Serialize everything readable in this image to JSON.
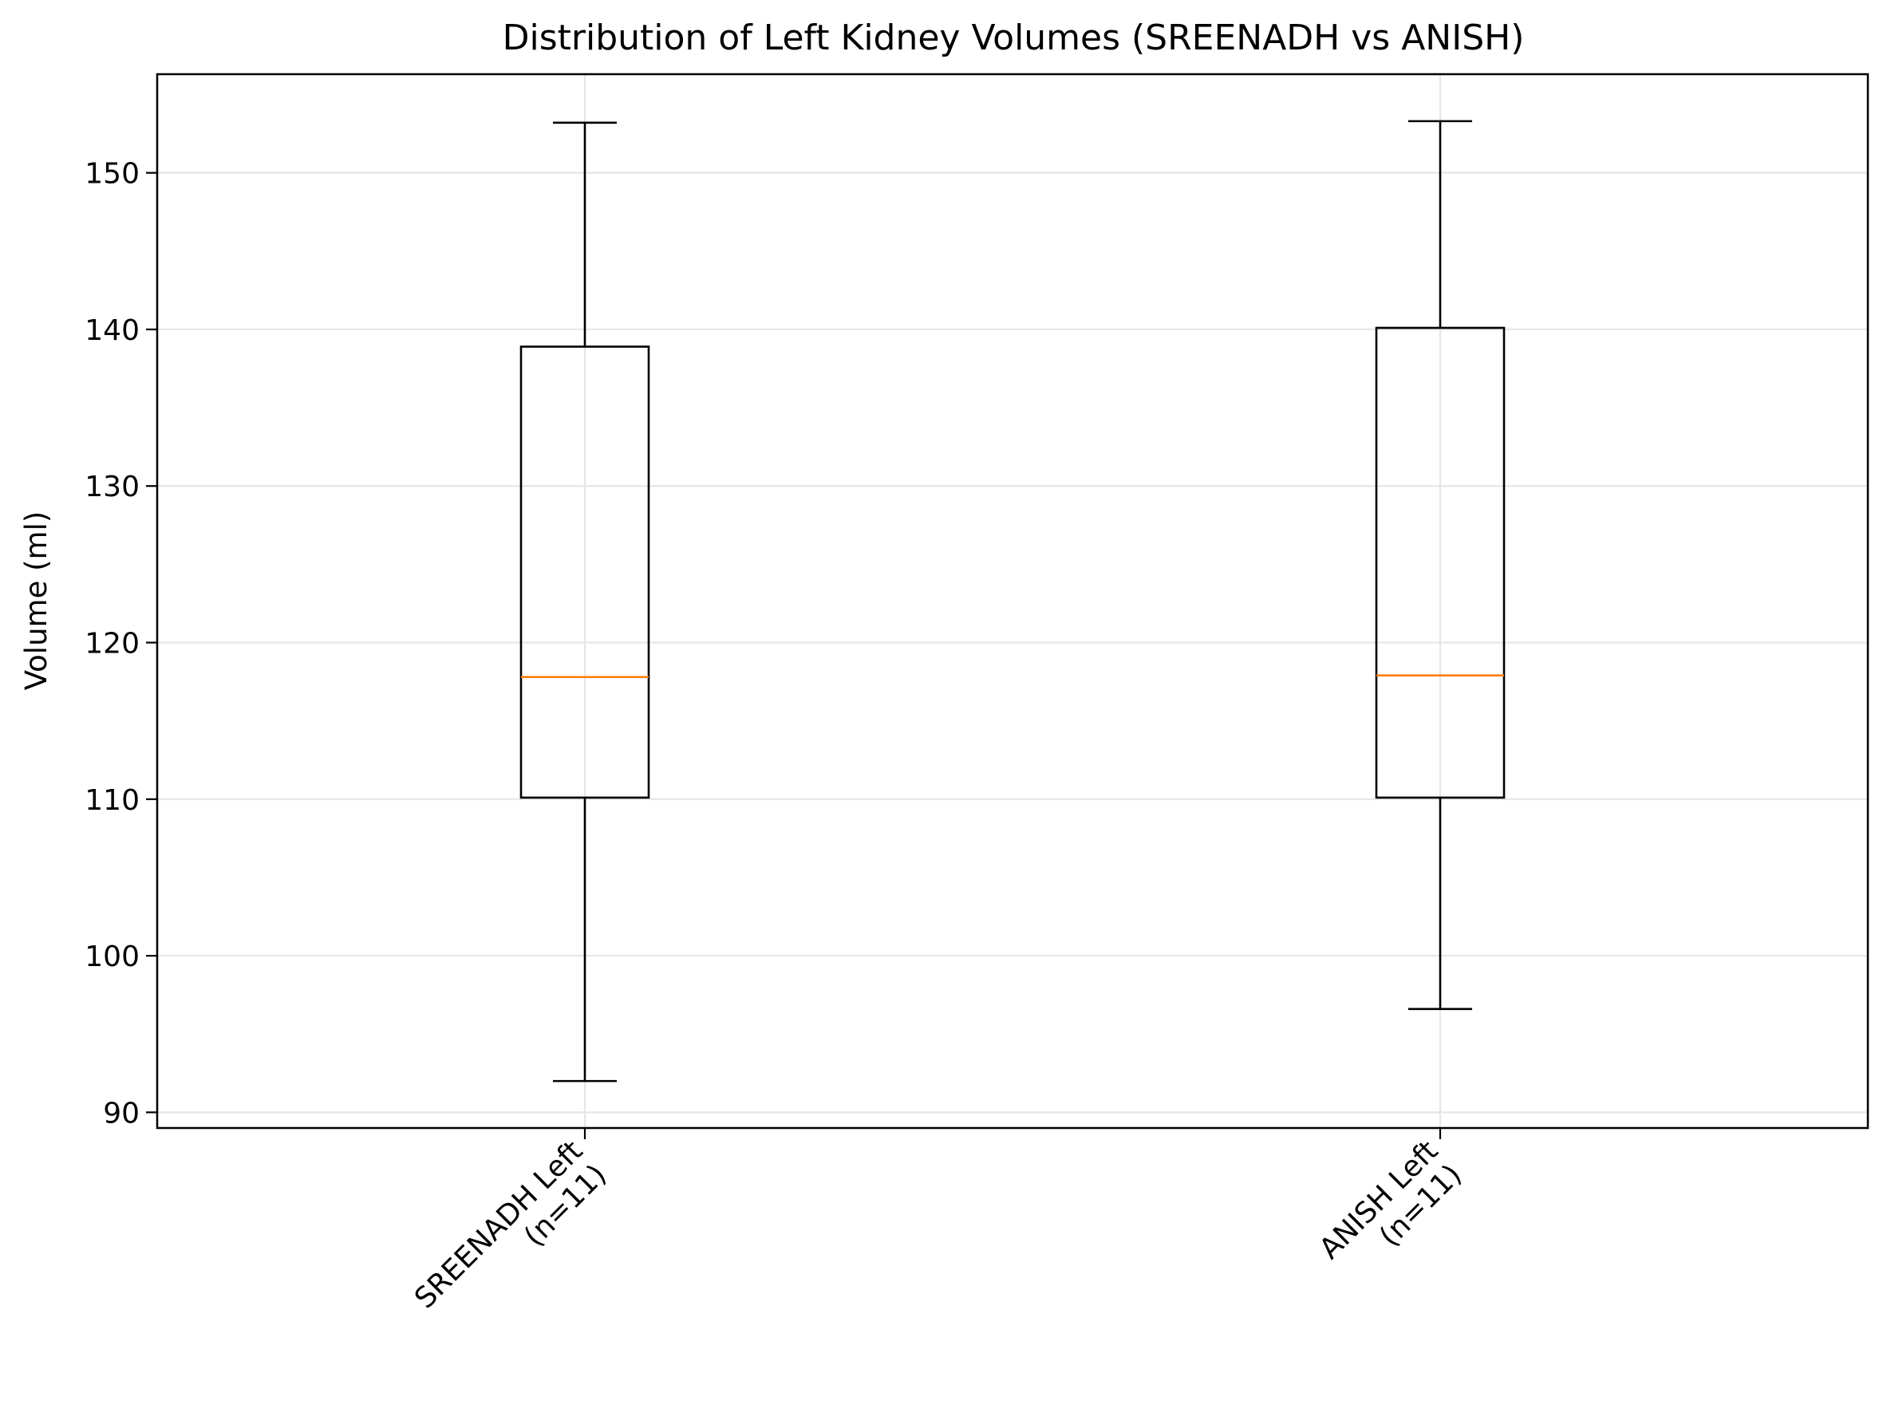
{
  "chart_data": {
    "type": "box",
    "title": "Distribution of Left Kidney Volumes (SREENADH vs ANISH)",
    "xlabel": "",
    "ylabel": "Volume (ml)",
    "ylim": [
      89,
      156.3
    ],
    "yticks": [
      90,
      100,
      110,
      120,
      130,
      140,
      150
    ],
    "grid": true,
    "categories": [
      {
        "line1": "SREENADH Left",
        "line2": "(n=11)"
      },
      {
        "line1": "ANISH Left",
        "line2": "(n=11)"
      }
    ],
    "series": [
      {
        "whisker_low": 92.0,
        "q1": 110.1,
        "median": 117.8,
        "q3": 138.9,
        "whisker_high": 153.2
      },
      {
        "whisker_low": 96.6,
        "q1": 110.1,
        "median": 117.9,
        "q3": 140.1,
        "whisker_high": 153.3
      }
    ],
    "colors": {
      "box": "#000000",
      "median": "#ff7f0e",
      "grid": "#e6e6e6"
    }
  }
}
